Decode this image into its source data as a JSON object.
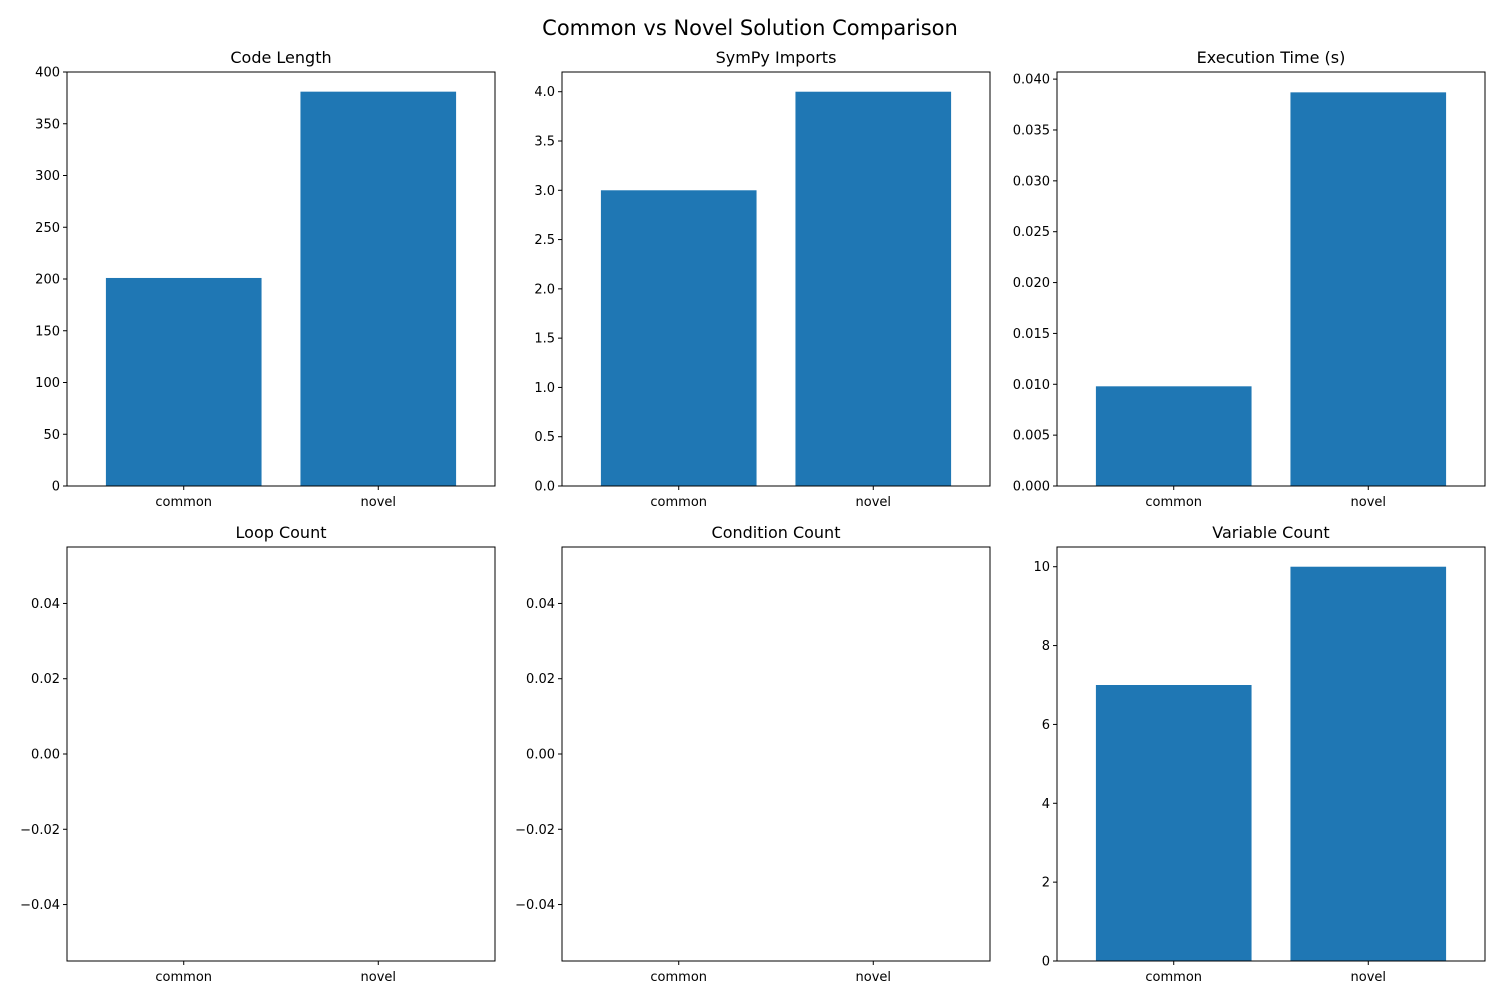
{
  "figure": {
    "title": "Common vs Novel Solution Comparison"
  },
  "colors": {
    "bar": "#1f77b4",
    "axis": "#000000",
    "background": "#ffffff"
  },
  "chart_data": [
    {
      "type": "bar",
      "title": "Code Length",
      "categories": [
        "common",
        "novel"
      ],
      "values": [
        201,
        381
      ],
      "ylim": [
        0,
        400
      ],
      "yticks": [
        "0",
        "50",
        "100",
        "150",
        "200",
        "250",
        "300",
        "350",
        "400"
      ],
      "yticks_values": [
        0,
        50,
        100,
        150,
        200,
        250,
        300,
        350,
        400
      ],
      "grid": false
    },
    {
      "type": "bar",
      "title": "SymPy Imports",
      "categories": [
        "common",
        "novel"
      ],
      "values": [
        3,
        4
      ],
      "ylim": [
        0,
        4.2
      ],
      "yticks": [
        "0.0",
        "0.5",
        "1.0",
        "1.5",
        "2.0",
        "2.5",
        "3.0",
        "3.5",
        "4.0"
      ],
      "yticks_values": [
        0,
        0.5,
        1.0,
        1.5,
        2.0,
        2.5,
        3.0,
        3.5,
        4.0
      ],
      "grid": false
    },
    {
      "type": "bar",
      "title": "Execution Time (s)",
      "categories": [
        "common",
        "novel"
      ],
      "values": [
        0.0098,
        0.0387
      ],
      "ylim": [
        0,
        0.0407
      ],
      "yticks": [
        "0.000",
        "0.005",
        "0.010",
        "0.015",
        "0.020",
        "0.025",
        "0.030",
        "0.035",
        "0.040"
      ],
      "yticks_values": [
        0,
        0.005,
        0.01,
        0.015,
        0.02,
        0.025,
        0.03,
        0.035,
        0.04
      ],
      "grid": false
    },
    {
      "type": "bar",
      "title": "Loop Count",
      "categories": [
        "common",
        "novel"
      ],
      "values": [
        0,
        0
      ],
      "ylim": [
        -0.055,
        0.055
      ],
      "yticks": [
        "−0.04",
        "−0.02",
        "0.00",
        "0.02",
        "0.04"
      ],
      "yticks_values": [
        -0.04,
        -0.02,
        0.0,
        0.02,
        0.04
      ],
      "grid": false
    },
    {
      "type": "bar",
      "title": "Condition Count",
      "categories": [
        "common",
        "novel"
      ],
      "values": [
        0,
        0
      ],
      "ylim": [
        -0.055,
        0.055
      ],
      "yticks": [
        "−0.04",
        "−0.02",
        "0.00",
        "0.02",
        "0.04"
      ],
      "yticks_values": [
        -0.04,
        -0.02,
        0.0,
        0.02,
        0.04
      ],
      "grid": false
    },
    {
      "type": "bar",
      "title": "Variable Count",
      "categories": [
        "common",
        "novel"
      ],
      "values": [
        7,
        10
      ],
      "ylim": [
        0,
        10.5
      ],
      "yticks": [
        "0",
        "2",
        "4",
        "6",
        "8",
        "10"
      ],
      "yticks_values": [
        0,
        2,
        4,
        6,
        8,
        10
      ],
      "grid": false
    }
  ]
}
